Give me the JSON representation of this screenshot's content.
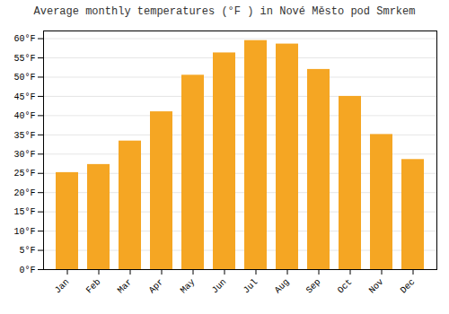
{
  "chart_data": {
    "type": "bar",
    "title": "Average monthly temperatures (°F ) in Nové Město pod Smrkem",
    "categories": [
      "Jan",
      "Feb",
      "Mar",
      "Apr",
      "May",
      "Jun",
      "Jul",
      "Aug",
      "Sep",
      "Oct",
      "Nov",
      "Dec"
    ],
    "values": [
      25.2,
      27.3,
      33.4,
      41.0,
      50.5,
      56.3,
      59.5,
      58.6,
      52.0,
      45.0,
      35.1,
      28.6
    ],
    "color": "#F5A623",
    "ylim": [
      0,
      62
    ],
    "yticks": [
      {
        "value": 0,
        "label": "0°F"
      },
      {
        "value": 5,
        "label": "5°F"
      },
      {
        "value": 10,
        "label": "10°F"
      },
      {
        "value": 15,
        "label": "15°F"
      },
      {
        "value": 20,
        "label": "20°F"
      },
      {
        "value": 25,
        "label": "25°F"
      },
      {
        "value": 30,
        "label": "30°F"
      },
      {
        "value": 35,
        "label": "35°F"
      },
      {
        "value": 40,
        "label": "40°F"
      },
      {
        "value": 45,
        "label": "45°F"
      },
      {
        "value": 50,
        "label": "50°F"
      },
      {
        "value": 55,
        "label": "55°F"
      },
      {
        "value": 60,
        "label": "60°F"
      }
    ],
    "grid": true
  }
}
